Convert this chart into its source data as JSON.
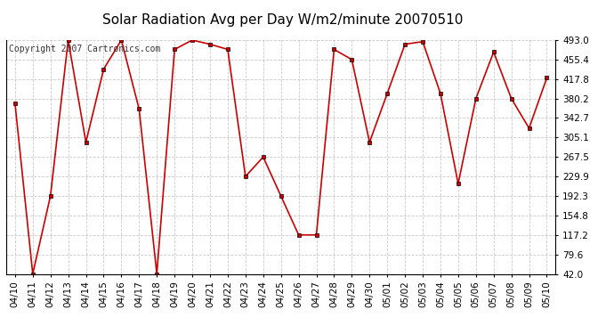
{
  "title": "Solar Radiation Avg per Day W/m2/minute 20070510",
  "copyright_text": "Copyright 2007 Cartronics.com",
  "dates": [
    "04/10",
    "04/11",
    "04/12",
    "04/13",
    "04/14",
    "04/15",
    "04/16",
    "04/17",
    "04/18",
    "04/19",
    "04/20",
    "04/21",
    "04/22",
    "04/23",
    "04/24",
    "04/25",
    "04/26",
    "04/27",
    "04/28",
    "04/29",
    "04/30",
    "05/01",
    "05/02",
    "05/03",
    "05/04",
    "05/05",
    "05/06",
    "05/07",
    "05/08",
    "05/09",
    "05/10"
  ],
  "values": [
    371.0,
    42.0,
    192.3,
    493.0,
    296.0,
    437.0,
    493.0,
    360.0,
    42.0,
    475.0,
    493.0,
    485.0,
    475.0,
    229.9,
    267.5,
    192.3,
    117.2,
    117.2,
    475.0,
    455.4,
    296.0,
    390.0,
    485.0,
    490.0,
    390.0,
    216.0,
    380.2,
    470.0,
    380.2,
    323.0,
    420.0
  ],
  "yticks": [
    42.0,
    79.6,
    117.2,
    154.8,
    192.3,
    229.9,
    267.5,
    305.1,
    342.7,
    380.2,
    417.8,
    455.4,
    493.0
  ],
  "ymin": 42.0,
  "ymax": 493.0,
  "line_color": "#cc0000",
  "marker_color": "#cc0000",
  "marker_edge_color": "#000000",
  "bg_color": "#ffffff",
  "grid_color": "#bbbbbb",
  "title_fontsize": 11,
  "copyright_fontsize": 7,
  "tick_fontsize": 7.5
}
